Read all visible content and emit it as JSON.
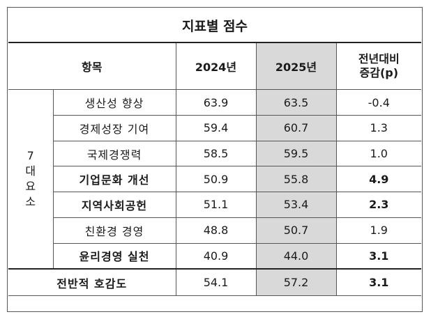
{
  "title": "지표별 점수",
  "header": {
    "item": "항목",
    "y2024": "2024년",
    "y2025": "2025년",
    "diff_line1": "전년대비",
    "diff_line2": "증감(p)"
  },
  "group_label": [
    "7",
    "대",
    "요",
    "소"
  ],
  "rows": [
    {
      "item": "생산성 향상",
      "y2024": "63.9",
      "y2025": "63.5",
      "diff": "-0.4",
      "bold": false
    },
    {
      "item": "경제성장 기여",
      "y2024": "59.4",
      "y2025": "60.7",
      "diff": "1.3",
      "bold": false
    },
    {
      "item": "국제경쟁력",
      "y2024": "58.5",
      "y2025": "59.5",
      "diff": "1.0",
      "bold": false
    },
    {
      "item": "기업문화 개선",
      "y2024": "50.9",
      "y2025": "55.8",
      "diff": "4.9",
      "bold": true
    },
    {
      "item": "지역사회공헌",
      "y2024": "51.1",
      "y2025": "53.4",
      "diff": "2.3",
      "bold": true
    },
    {
      "item": "친환경 경영",
      "y2024": "48.8",
      "y2025": "50.7",
      "diff": "1.9",
      "bold": false
    },
    {
      "item": "윤리경영 실천",
      "y2024": "40.9",
      "y2025": "44.0",
      "diff": "3.1",
      "bold": true
    }
  ],
  "total": {
    "item": "전반적 호감도",
    "y2024": "54.1",
    "y2025": "57.2",
    "diff": "3.1"
  },
  "colors": {
    "highlight_column": "#d9d9d9",
    "border": "#555555"
  }
}
